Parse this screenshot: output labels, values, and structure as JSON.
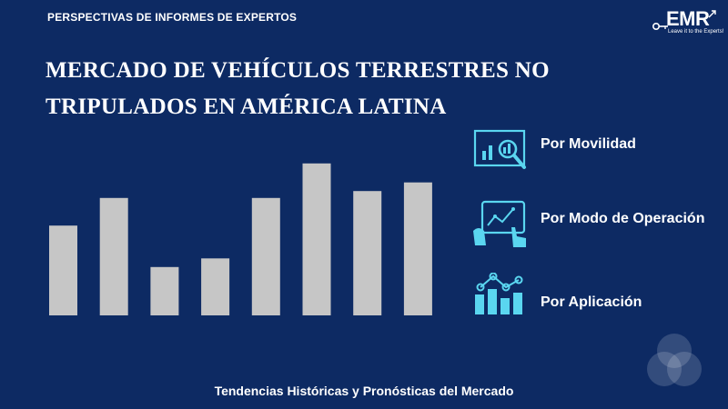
{
  "header": {
    "kicker": "PERSPECTIVAS DE INFORMES DE EXPERTOS"
  },
  "logo": {
    "name": "EMR",
    "tagline": "Leave it to the Experts!"
  },
  "title": "MERCADO DE VEHÍCULOS TERRESTRES NO TRIPULADOS EN AMÉRICA LATINA",
  "segments": [
    {
      "label": "Por Movilidad",
      "icon": "chart-magnifier-icon"
    },
    {
      "label": "Por Modo de Operación",
      "icon": "touch-tablet-icon"
    },
    {
      "label": "Por Aplicación",
      "icon": "bar-line-chart-icon"
    }
  ],
  "footer": "Tendencias Históricas y Pronósticas del Mercado",
  "colors": {
    "background": "#0d2a63",
    "bar": "#c6c6c6",
    "icon": "#5ad6f0",
    "text": "#ffffff"
  },
  "chart_data": {
    "type": "bar",
    "categories": [
      "",
      "",
      "",
      "",
      "",
      "",
      "",
      ""
    ],
    "values": [
      52,
      68,
      28,
      33,
      68,
      88,
      72,
      77
    ],
    "ylim": [
      0,
      100
    ],
    "grid": false,
    "title": "",
    "xlabel": "",
    "ylabel": ""
  }
}
